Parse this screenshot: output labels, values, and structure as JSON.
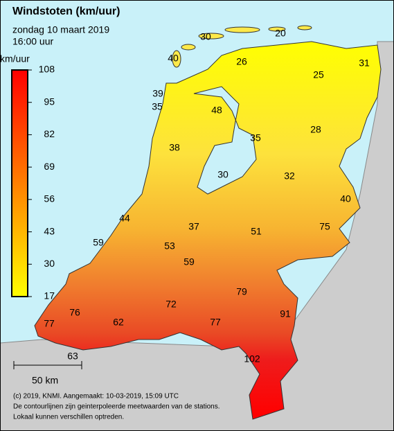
{
  "header": {
    "title": "Windstoten (km/uur)",
    "date": "zondag 10 maart 2019",
    "time": "16:00 uur"
  },
  "legend": {
    "unit": "km/uur",
    "ticks": [
      108,
      95,
      82,
      69,
      56,
      43,
      30,
      17
    ],
    "colors": [
      "#ff0000",
      "#ffff00"
    ]
  },
  "stations": [
    30,
    20,
    40,
    26,
    25,
    31,
    39,
    35,
    48,
    28,
    35,
    38,
    30,
    32,
    40,
    44,
    37,
    51,
    75,
    59,
    53,
    59,
    79,
    72,
    76,
    91,
    62,
    77,
    77,
    63,
    102
  ],
  "scale": {
    "label": "50 km"
  },
  "footer": [
    "(c) 2019, KNMI. Aangemaakt: 10-03-2019, 15:09 UTC",
    "De contourlijnen zijn geinterpoleerde meetwaarden van de stations.",
    "Lokaal kunnen verschillen optreden."
  ]
}
